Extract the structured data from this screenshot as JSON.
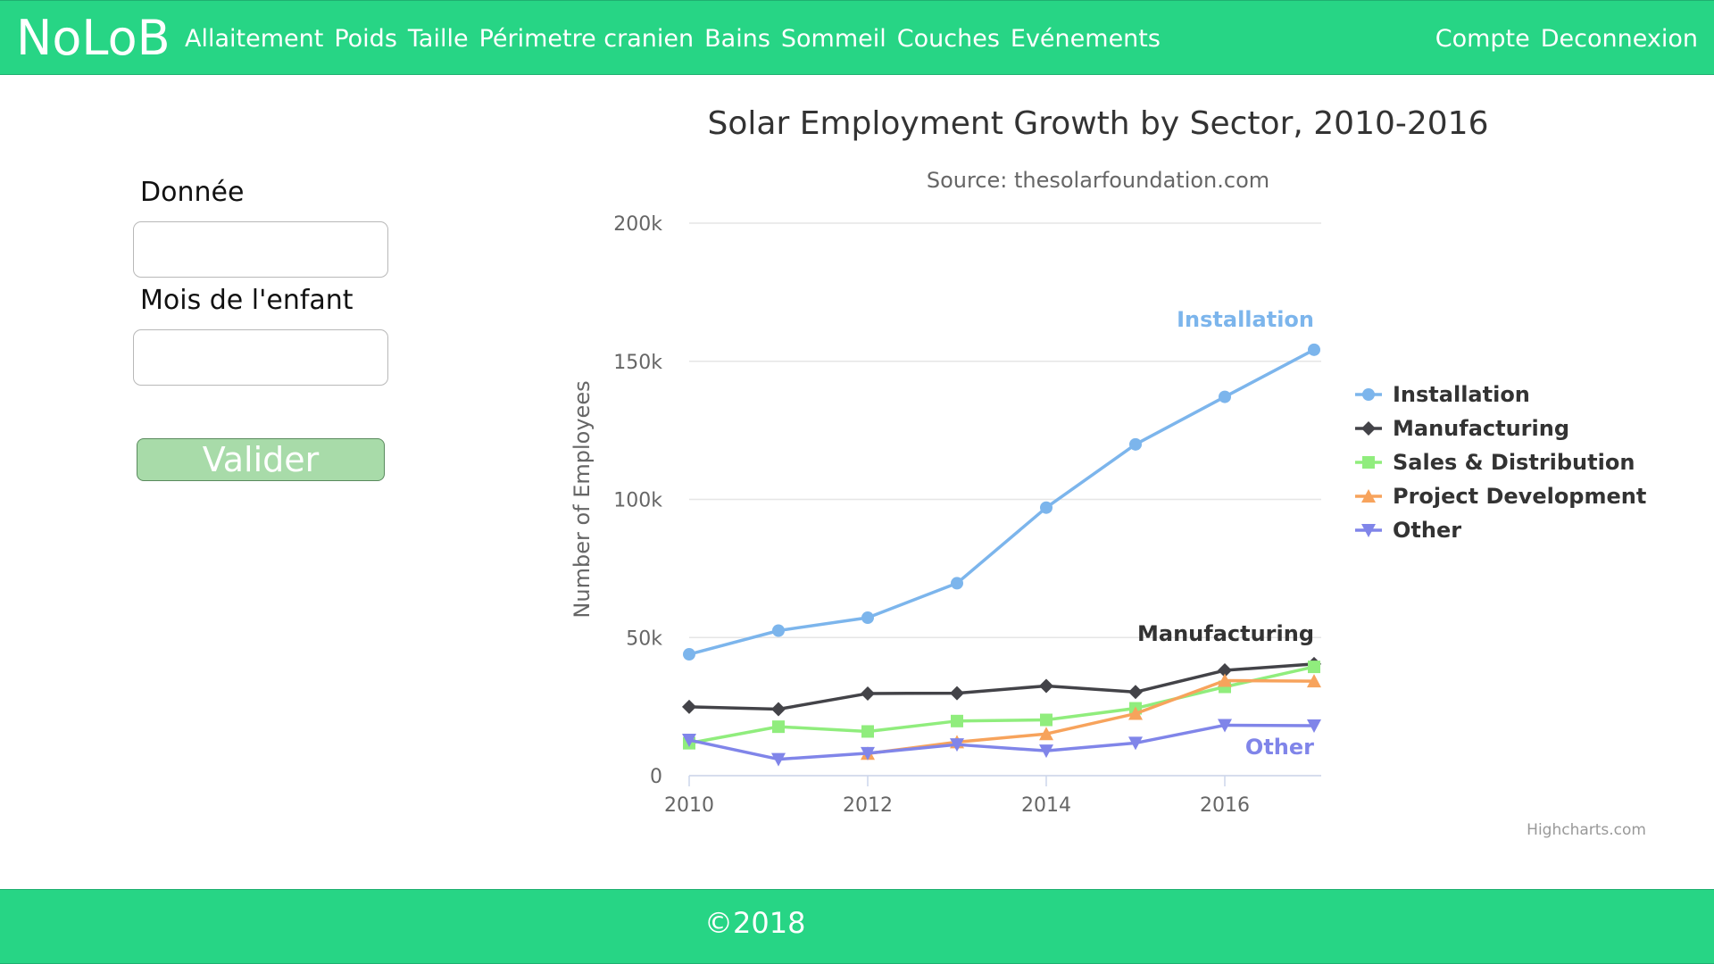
{
  "nav": {
    "brand": "NoLoB",
    "links": [
      "Allaitement",
      "Poids",
      "Taille",
      "Périmetre cranien",
      "Bains",
      "Sommeil",
      "Couches",
      "Evénements"
    ],
    "right_links": [
      "Compte",
      "Deconnexion"
    ]
  },
  "form": {
    "field1_label": "Donnée",
    "field1_value": "",
    "field2_label": "Mois de l'enfant",
    "field2_value": "",
    "submit_label": "Valider"
  },
  "chart_data": {
    "type": "line",
    "title": "Solar Employment Growth by Sector, 2010-2016",
    "subtitle": "Source: thesolarfoundation.com",
    "ylabel": "Number of Employees",
    "xlabel": "",
    "ylim": [
      0,
      200000
    ],
    "yticks": [
      0,
      50000,
      100000,
      150000,
      200000
    ],
    "ytick_labels": [
      "0",
      "50k",
      "100k",
      "150k",
      "200k"
    ],
    "xlim": [
      2010,
      2017
    ],
    "xticks": [
      2010,
      2012,
      2014,
      2016
    ],
    "x": [
      2010,
      2011,
      2012,
      2013,
      2014,
      2015,
      2016,
      2017
    ],
    "grid": true,
    "legend_position": "right",
    "credits": "Highcharts.com",
    "series": [
      {
        "name": "Installation",
        "color": "#7cb5ec",
        "marker": "circle",
        "values": [
          43934,
          52503,
          57177,
          69658,
          97031,
          119931,
          137133,
          154175
        ],
        "end_label": "Installation"
      },
      {
        "name": "Manufacturing",
        "color": "#434348",
        "marker": "diamond",
        "values": [
          24916,
          24064,
          29742,
          29851,
          32490,
          30282,
          38121,
          40434
        ],
        "end_label": "Manufacturing"
      },
      {
        "name": "Sales & Distribution",
        "color": "#90ed7d",
        "marker": "square",
        "values": [
          11744,
          17722,
          16005,
          19771,
          20185,
          24377,
          32147,
          39387
        ],
        "end_label": ""
      },
      {
        "name": "Project Development",
        "color": "#f7a35c",
        "marker": "triangle",
        "values": [
          null,
          null,
          7988,
          12169,
          15112,
          22452,
          34400,
          34227
        ],
        "end_label": ""
      },
      {
        "name": "Other",
        "color": "#8085e9",
        "marker": "triangle-down",
        "values": [
          12908,
          5948,
          8105,
          11248,
          8989,
          11816,
          18274,
          18111
        ],
        "end_label": "Other"
      }
    ]
  },
  "footer": {
    "text": "©2018"
  }
}
